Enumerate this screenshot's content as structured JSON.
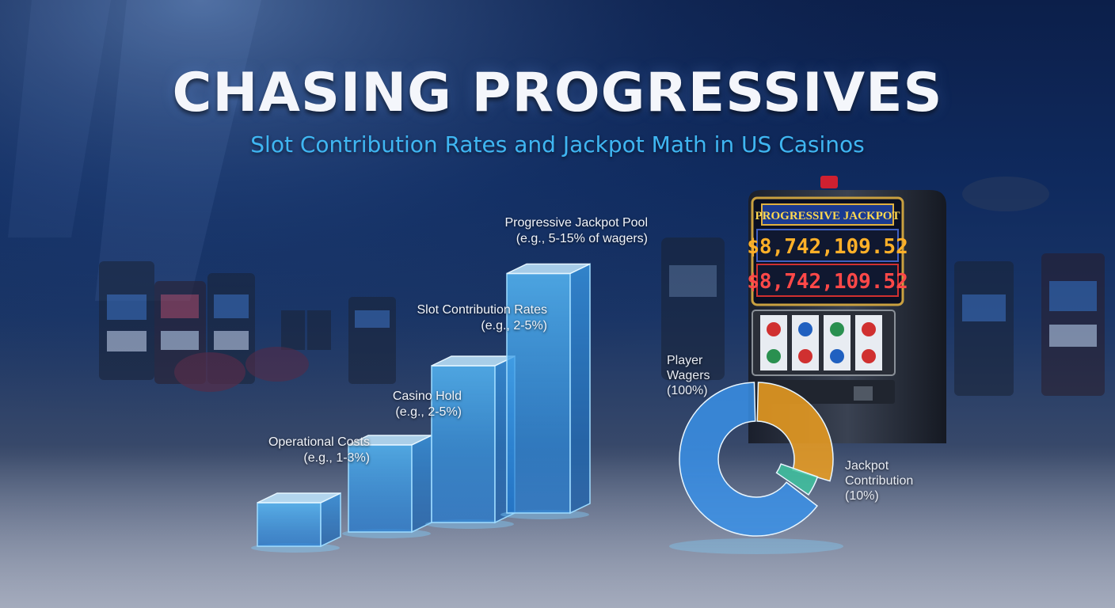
{
  "header": {
    "title": "CHASING PROGRESSIVES",
    "subtitle": "Slot Contribution Rates and Jackpot Math in US Casinos"
  },
  "slot_machine": {
    "marquee": "PROGRESSIVE JACKPOT",
    "jackpot_top": "$8,742,109.52",
    "jackpot_bottom": "$8,742,109.52"
  },
  "colors": {
    "bar": "#3aa6f0",
    "pie_orange": "#f0a020",
    "pie_green": "#3fc4a0",
    "pie_blue": "#3a90e8",
    "subtitle": "#3fb6f2"
  },
  "chart_data": [
    {
      "type": "bar",
      "categories": [
        "Operational Costs (e.g., 1-3%)",
        "Casino Hold (e.g., 2-5%)",
        "Slot Contribution Rates (e.g., 2-5%)",
        "Progressive Jackpot Pool (e.g., 5-15% of wagers)"
      ],
      "labels": [
        {
          "line1": "Operational Costs",
          "line2": "(e.g., 1-3%)"
        },
        {
          "line1": "Casino Hold",
          "line2": "(e.g., 2-5%)"
        },
        {
          "line1": "Slot Contribution Rates",
          "line2": "(e.g., 2-5%)"
        },
        {
          "line1": "Progressive Jackpot Pool",
          "line2": "(e.g., 5-15% of wagers)"
        }
      ],
      "values": [
        1,
        2,
        3.6,
        5.5
      ],
      "ylim": [
        0,
        6
      ],
      "grid": false
    },
    {
      "type": "pie",
      "labels": [
        {
          "line1": "Player",
          "line2": "Wagers",
          "line3": "(100%)"
        },
        {
          "line1": "Jackpot",
          "line2": "Contribution",
          "line3": "(10%)"
        }
      ],
      "slices": [
        {
          "name": "Jackpot Contribution",
          "value": 30
        },
        {
          "name": "Segment",
          "value": 5
        },
        {
          "name": "Player Wagers",
          "value": 65
        }
      ]
    }
  ]
}
